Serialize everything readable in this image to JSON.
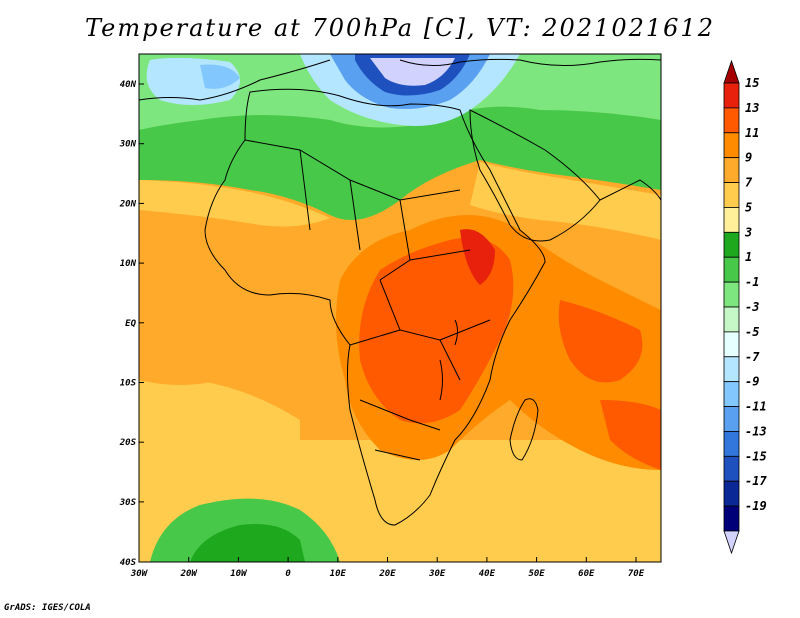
{
  "title": "Temperature at 700hPa [C], VT: 2021021612",
  "credit": "GrADS: IGES/COLA",
  "map": {
    "lat_labels": [
      "40N",
      "30N",
      "20N",
      "10N",
      "EQ",
      "10S",
      "20S",
      "30S",
      "40S"
    ],
    "lon_labels": [
      "30W",
      "20W",
      "10W",
      "0",
      "10E",
      "20E",
      "30E",
      "40E",
      "50E",
      "60E",
      "70E"
    ]
  },
  "colorbar": {
    "labels": [
      "15",
      "13",
      "11",
      "9",
      "7",
      "5",
      "3",
      "1",
      "-1",
      "-3",
      "-5",
      "-7",
      "-9",
      "-11",
      "-13",
      "-15",
      "-17",
      "-19"
    ],
    "colors": [
      "#a50000",
      "#e8210c",
      "#ff5a00",
      "#ff8c00",
      "#ffaa2a",
      "#ffcc4d",
      "#fff099",
      "#1ea81e",
      "#48c848",
      "#7ee67e",
      "#c6f7c6",
      "#e6ffff",
      "#b4e6ff",
      "#82c8ff",
      "#5aa0f0",
      "#3278dc",
      "#1e50be",
      "#0a2896",
      "#000078",
      "#d2d2ff"
    ]
  }
}
